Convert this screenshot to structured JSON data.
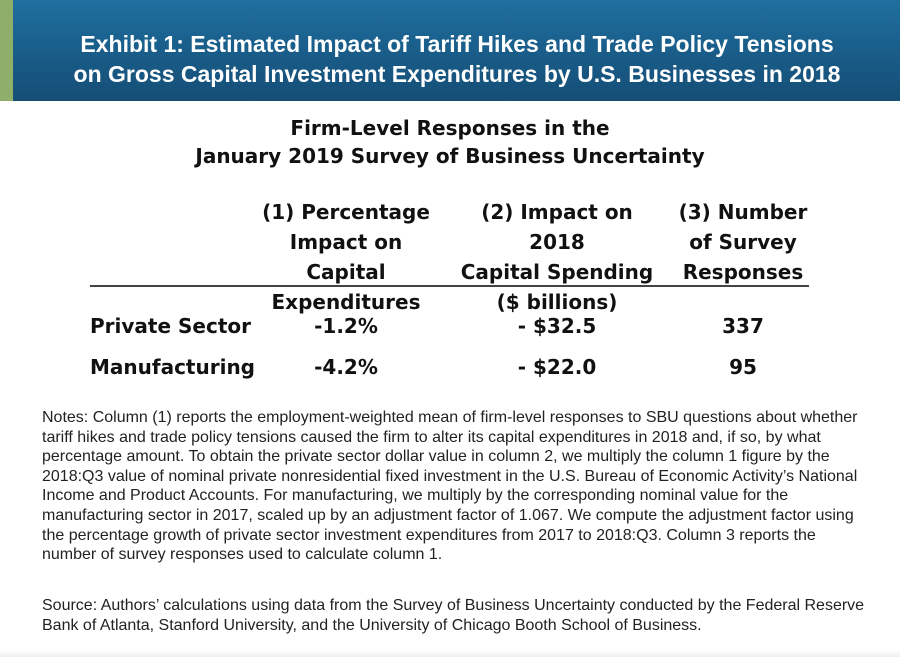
{
  "header": {
    "title_line1": "Exhibit 1: Estimated Impact of Tariff Hikes and Trade Policy Tensions",
    "title_line2": "on Gross Capital Investment Expenditures by U.S. Businesses in 2018",
    "accent_color": "#8fae6a",
    "background_color": "#1a5f8c"
  },
  "subtitle": {
    "line1": "Firm-Level Responses in the",
    "line2": "January 2019 Survey of Business Uncertainty"
  },
  "table": {
    "columns": [
      {
        "line1": "(1) Percentage",
        "line2": "Impact on Capital",
        "line3": "Expenditures"
      },
      {
        "line1": "(2) Impact on 2018",
        "line2": "Capital Spending",
        "line3": "($ billions)"
      },
      {
        "line1": "(3) Number",
        "line2": "of Survey",
        "line3": "Responses"
      }
    ],
    "rows": [
      {
        "label": "Private Sector",
        "pct": "-1.2%",
        "impact": "- $32.5",
        "responses": "337"
      },
      {
        "label": "Manufacturing",
        "pct": "-4.2%",
        "impact": "- $22.0",
        "responses": "95"
      }
    ]
  },
  "notes": "Notes: Column (1) reports the employment-weighted mean of firm-level responses to SBU questions about whether tariff hikes and trade policy tensions caused the firm to alter its capital expenditures in 2018 and, if so, by what percentage amount. To obtain the private sector dollar value in column 2, we multiply the column 1 figure by the 2018:Q3 value of nominal private nonresidential fixed investment in the U.S. Bureau of Economic Activity’s National Income and Product Accounts. For manufacturing, we multiply by the corresponding nominal value for the manufacturing sector in 2017, scaled up by an adjustment factor of 1.067. We compute the adjustment factor using the percentage growth of private sector investment expenditures from 2017 to 2018:Q3. Column 3 reports the number of survey responses used to calculate column 1.",
  "source": "Source: Authors’ calculations using data from the Survey of Business Uncertainty conducted by the Federal Reserve Bank of Atlanta, Stanford University, and the University of Chicago Booth School of Business."
}
